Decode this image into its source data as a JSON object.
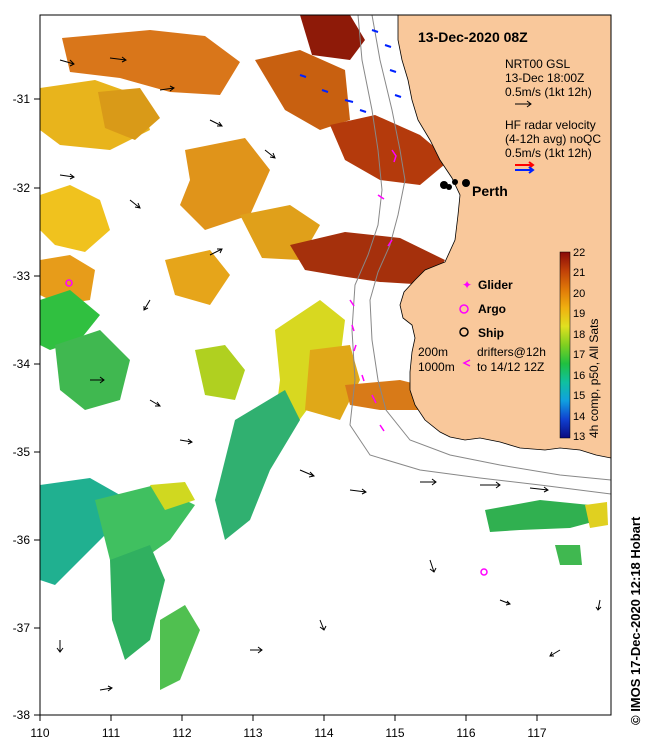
{
  "map": {
    "timestamp": "13-Dec-2020 08Z",
    "city_label": "Perth",
    "lon_ticks": [
      "110",
      "111",
      "112",
      "113",
      "114",
      "115",
      "116",
      "117"
    ],
    "lat_ticks": [
      "-31",
      "-32",
      "-33",
      "-34",
      "-35",
      "-36",
      "-37",
      "-38"
    ],
    "colors": {
      "land": "#f9c89b",
      "ocean": "#ffffff",
      "drifter": "#ff00ff"
    }
  },
  "legend": {
    "model_line1": "NRT00 GSL",
    "model_line2": "13-Dec 18:00Z",
    "model_line3": "0.5m/s (1kt 12h)",
    "radar_line1": "HF radar velocity",
    "radar_line2": "(4-12h avg) noQC",
    "radar_line3": "0.5m/s (1kt 12h)",
    "glider": "Glider",
    "argo": "Argo",
    "ship": "Ship",
    "isobath_200": "200m",
    "isobath_1000": "1000m",
    "drifters_line1": "drifters@12h",
    "drifters_line2": "to 14/12 12Z"
  },
  "colorbar": {
    "ticks": [
      "22",
      "21",
      "20",
      "19",
      "18",
      "17",
      "16",
      "15",
      "14",
      "13"
    ],
    "title": "4h comp, p50, All Sats"
  },
  "footer": "© IMOS 17-Dec-2020 12:18 Hobart"
}
